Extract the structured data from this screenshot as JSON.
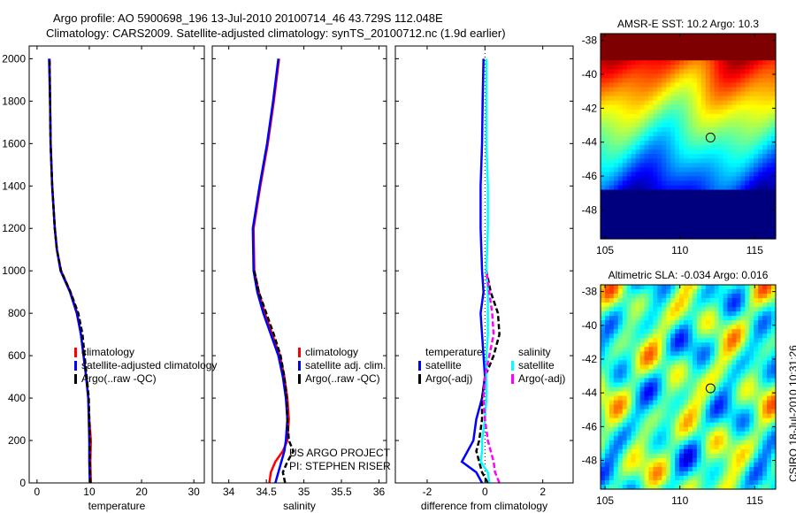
{
  "title_line1": "Argo profile: AO 5900698_196 13-Jul-2010 20100714_46 43.729S 112.048E",
  "title_line2": "Climatology: CARS2009. Satellite-adjusted climatology: synTS_20100712.nc (1.9d earlier)",
  "side_stamp": "CSIRO 18-Jul-2010 10:31:26",
  "colors": {
    "climatology": "#ff0000",
    "satellite": "#0000ff",
    "argo": "#000000",
    "sal_satellite": "#00ffff",
    "sal_argo": "#ff00ff"
  },
  "chart_data": [
    {
      "type": "line",
      "xlabel": "temperature",
      "ylabel": "",
      "xlim": [
        -1.5,
        32
      ],
      "ylim": [
        2060,
        0
      ],
      "xticks": [
        "0",
        "10",
        "20",
        "30"
      ],
      "xtick_values": [
        0,
        10,
        20,
        30
      ],
      "yticks": [
        "0",
        "200",
        "400",
        "600",
        "800",
        "1000",
        "1200",
        "1400",
        "1600",
        "1800",
        "2000"
      ],
      "ytick_values": [
        0,
        200,
        400,
        600,
        800,
        1000,
        1200,
        1400,
        1600,
        1800,
        2000
      ],
      "depth": [
        0,
        100,
        200,
        300,
        400,
        500,
        600,
        700,
        800,
        900,
        1000,
        1100,
        1200,
        1400,
        1600,
        1800,
        2000
      ],
      "series": [
        {
          "name": "climatology",
          "color": "#ff0000",
          "values": [
            10.3,
            10.2,
            10.3,
            10.0,
            9.8,
            9.4,
            8.9,
            8.4,
            7.7,
            6.4,
            4.6,
            3.8,
            3.4,
            2.9,
            2.6,
            2.5,
            2.4
          ]
        },
        {
          "name": "satellite-adjusted climatology",
          "color": "#0000ff",
          "values": [
            10.1,
            10.0,
            10.0,
            9.9,
            9.8,
            9.4,
            8.9,
            8.4,
            7.6,
            6.3,
            4.5,
            3.8,
            3.4,
            2.9,
            2.6,
            2.5,
            2.3
          ]
        },
        {
          "name": "Argo(..raw -QC)",
          "color": "#000000",
          "dashed": true,
          "values": [
            10.2,
            10.1,
            10.1,
            10.0,
            9.9,
            9.5,
            9.1,
            8.7,
            7.9,
            6.4,
            4.6,
            3.8,
            3.4,
            2.9,
            2.6,
            2.5,
            2.4
          ]
        }
      ],
      "legend": [
        "climatology",
        "satellite-adjusted climatology",
        "Argo(..raw -QC)"
      ]
    },
    {
      "type": "line",
      "xlabel": "salinity",
      "xlim": [
        33.78,
        36.1
      ],
      "ylim": [
        2060,
        0
      ],
      "xticks": [
        "34",
        "34.5",
        "35",
        "35.5",
        "36"
      ],
      "xtick_values": [
        34,
        34.5,
        35,
        35.5,
        36
      ],
      "depth": [
        0,
        50,
        100,
        150,
        200,
        300,
        400,
        500,
        600,
        700,
        800,
        900,
        1000,
        1200,
        1400,
        1600,
        1800,
        2000
      ],
      "series": [
        {
          "name": "climatology",
          "color": "#ff0000",
          "values": [
            34.54,
            34.56,
            34.62,
            34.72,
            34.78,
            34.8,
            34.78,
            34.74,
            34.68,
            34.58,
            34.48,
            34.4,
            34.34,
            34.33,
            34.42,
            34.52,
            34.6,
            34.67
          ]
        },
        {
          "name": "satellite adj. clim.",
          "color": "#0000ff",
          "values": [
            34.62,
            34.66,
            34.7,
            34.74,
            34.76,
            34.78,
            34.76,
            34.72,
            34.66,
            34.56,
            34.46,
            34.38,
            34.33,
            34.32,
            34.41,
            34.51,
            34.59,
            34.66
          ]
        },
        {
          "name": "Argo(..raw -QC)",
          "color": "#000000",
          "dashed": true,
          "values": [
            34.75,
            34.72,
            34.78,
            34.86,
            34.8,
            34.78,
            34.77,
            34.74,
            34.69,
            34.6,
            34.5,
            34.4,
            34.34
          ]
        }
      ],
      "legend": [
        "climatology",
        "satellite adj. clim.",
        "Argo(..raw -QC)"
      ],
      "annotation": [
        "US ARGO PROJECT",
        "PI: STEPHEN RISER"
      ]
    },
    {
      "type": "line",
      "xlabel": "difference from climatology",
      "xlim": [
        -3.1,
        3.05
      ],
      "ylim": [
        2060,
        0
      ],
      "xticks": [
        "-2",
        "0",
        "2"
      ],
      "xtick_values": [
        -2,
        0,
        2
      ],
      "depth": [
        0,
        50,
        100,
        150,
        200,
        300,
        400,
        500,
        600,
        700,
        800,
        900,
        1000,
        1200,
        1400,
        1600,
        1800,
        2000
      ],
      "series": [
        {
          "name": "temperature satellite",
          "color": "#0000ff",
          "values": [
            -0.1,
            -0.3,
            -0.8,
            -0.6,
            -0.4,
            -0.3,
            -0.1,
            0,
            -0.05,
            -0.1,
            -0.15,
            -0.05,
            -0.1,
            -0.15,
            -0.15,
            -0.1,
            -0.08,
            -0.05
          ]
        },
        {
          "name": "temperature Argo(-adj)",
          "color": "#000000",
          "dashed": true,
          "values": [
            0.1,
            -0.1,
            -0.2,
            -0.3,
            -0.2,
            -0.1,
            -0.1,
            0,
            0.3,
            0.5,
            0.45,
            0.2,
            0.05
          ]
        },
        {
          "name": "salinity satellite",
          "color": "#00ffff",
          "values": [
            0.15,
            0.1,
            -0.15,
            -0.1,
            -0.1,
            0,
            0.05,
            0.05,
            0.05,
            0.1,
            0.1,
            0.1,
            0.05,
            0.1,
            0.1,
            0.05,
            0.05,
            0.05
          ]
        },
        {
          "name": "salinity Argo(-adj)",
          "color": "#ff00ff",
          "dashed": true,
          "values": [
            0.5,
            0.35,
            0.3,
            0.2,
            0.1,
            0,
            -0.05,
            0,
            0.15,
            0.3,
            0.25,
            0.15,
            0.05
          ]
        }
      ],
      "legend_groups": [
        {
          "heading": "temperature",
          "items": [
            "satellite",
            "Argo(-adj)"
          ]
        },
        {
          "heading": "salinity",
          "items": [
            "satellite",
            "Argo(-adj)"
          ]
        }
      ]
    },
    {
      "type": "heatmap",
      "title": "AMSR-E SST: 10.2 Argo: 10.3",
      "xlim": [
        104.7,
        116.4
      ],
      "ylim": [
        -49.7,
        -37.6
      ],
      "xticks": [
        "105",
        "110",
        "115"
      ],
      "xtick_values": [
        105,
        110,
        115
      ],
      "yticks": [
        "-38",
        "-40",
        "-42",
        "-44",
        "-46",
        "-48"
      ],
      "ytick_values": [
        -38,
        -40,
        -42,
        -44,
        -46,
        -48
      ],
      "marker": {
        "lon": 112.048,
        "lat": -43.729
      }
    },
    {
      "type": "heatmap",
      "title": "Altimetric SLA: -0.034 Argo: 0.016",
      "xlim": [
        104.7,
        116.4
      ],
      "ylim": [
        -49.7,
        -37.6
      ],
      "xticks": [
        "105",
        "110",
        "115"
      ],
      "xtick_values": [
        105,
        110,
        115
      ],
      "yticks": [
        "-38",
        "-40",
        "-42",
        "-44",
        "-46",
        "-48"
      ],
      "ytick_values": [
        -38,
        -40,
        -42,
        -44,
        -46,
        -48
      ],
      "marker": {
        "lon": 112.048,
        "lat": -43.729
      }
    }
  ]
}
